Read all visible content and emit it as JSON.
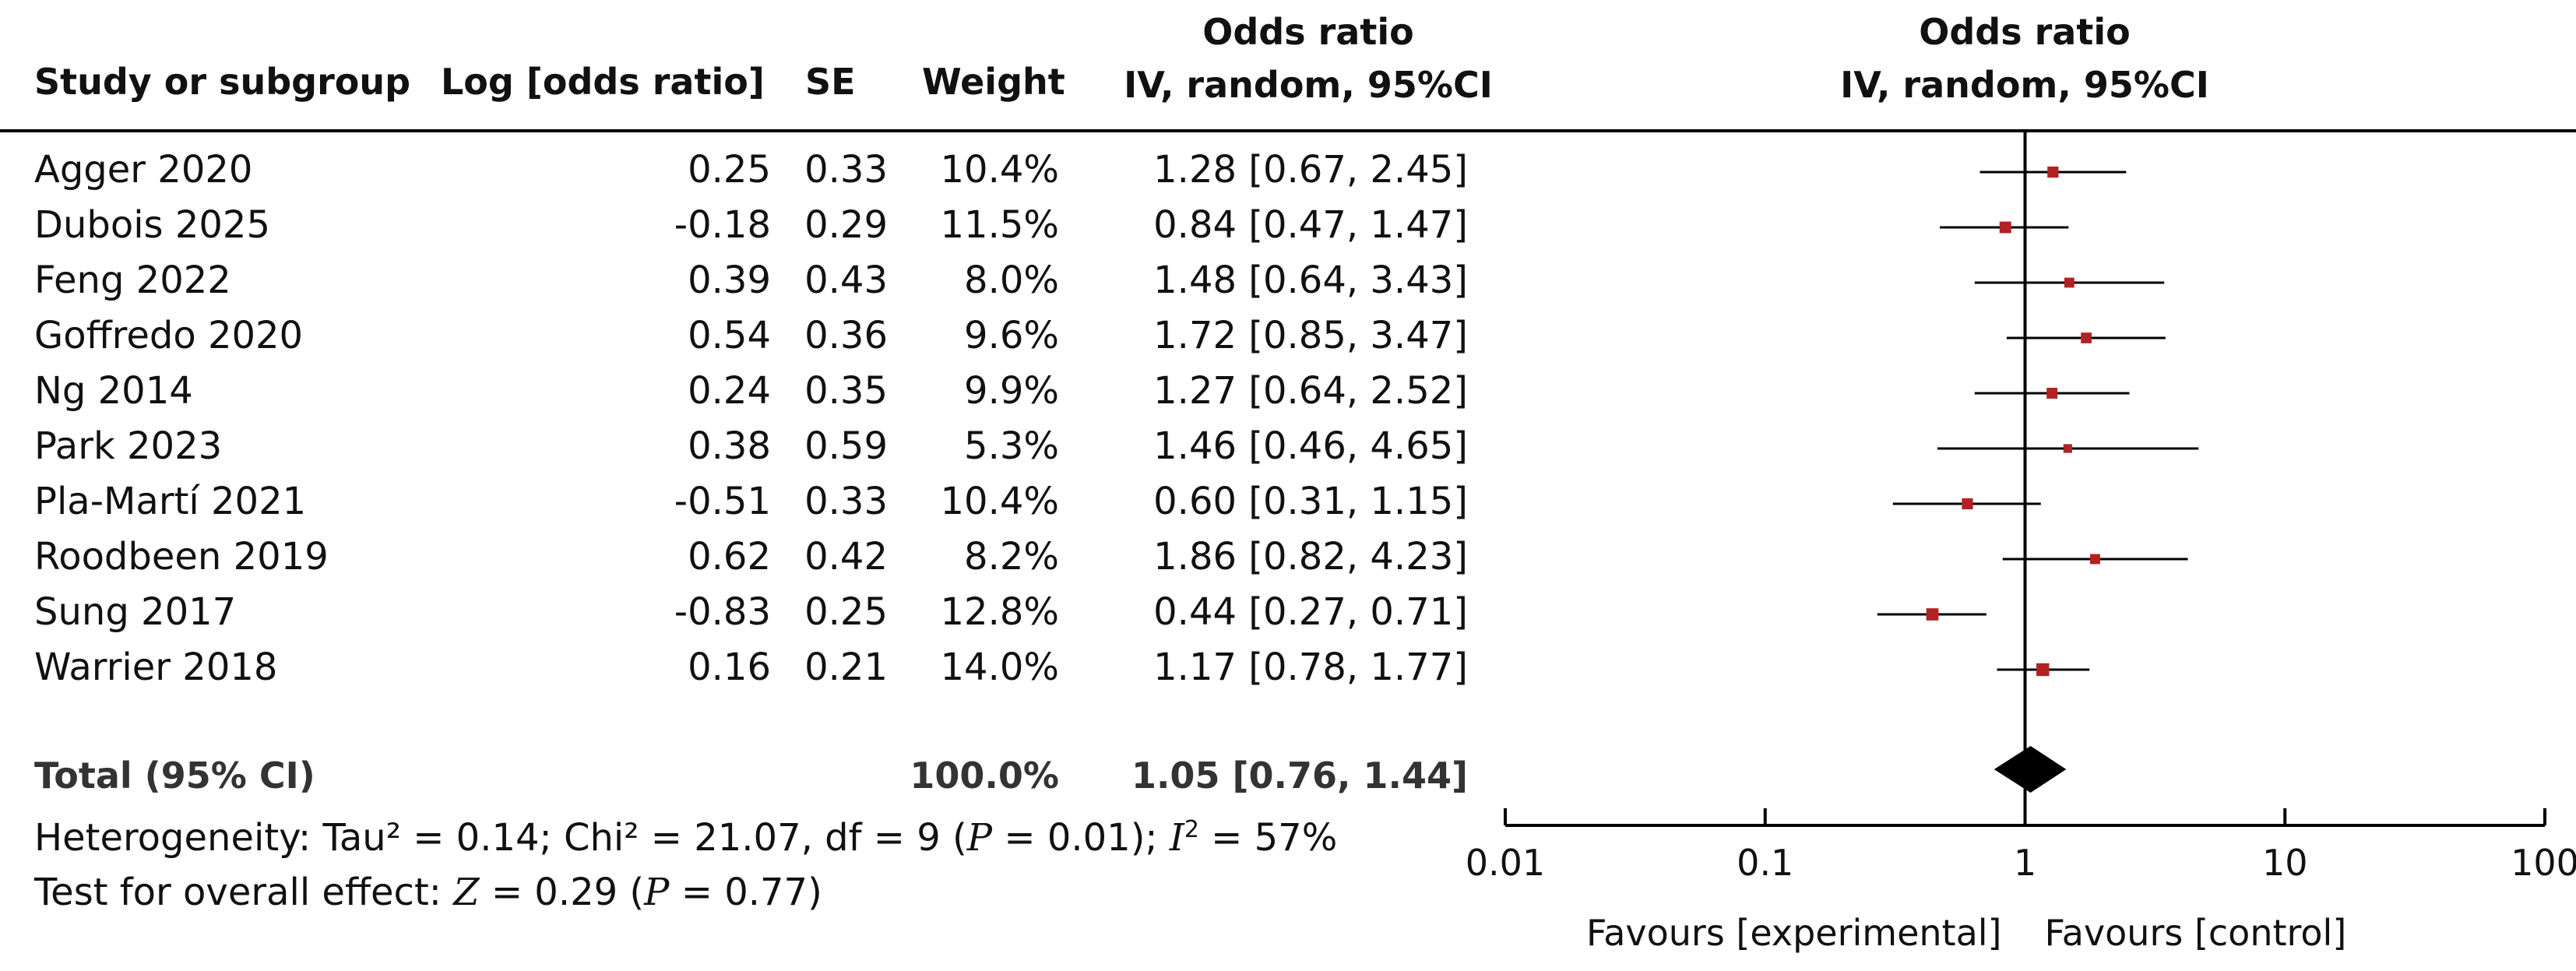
{
  "headers": {
    "study": "Study or subgroup",
    "log_or": "Log [odds ratio]",
    "se": "SE",
    "weight": "Weight",
    "or_line1": "Odds ratio",
    "or_line2": "IV, random, 95%CI",
    "plot_line1": "Odds ratio",
    "plot_line2": "IV, random, 95%CI"
  },
  "rows": [
    {
      "study": "Agger 2020",
      "log_or": "0.25",
      "se": "0.33",
      "weight": "10.4%",
      "ci": "1.28 [0.67, 2.45]"
    },
    {
      "study": "Dubois 2025",
      "log_or": "-0.18",
      "se": "0.29",
      "weight": "11.5%",
      "ci": "0.84 [0.47, 1.47]"
    },
    {
      "study": "Feng 2022",
      "log_or": "0.39",
      "se": "0.43",
      "weight": "8.0%",
      "ci": "1.48 [0.64, 3.43]"
    },
    {
      "study": "Goffredo 2020",
      "log_or": "0.54",
      "se": "0.36",
      "weight": "9.6%",
      "ci": "1.72 [0.85, 3.47]"
    },
    {
      "study": "Ng 2014",
      "log_or": "0.24",
      "se": "0.35",
      "weight": "9.9%",
      "ci": "1.27 [0.64, 2.52]"
    },
    {
      "study": "Park 2023",
      "log_or": "0.38",
      "se": "0.59",
      "weight": "5.3%",
      "ci": "1.46 [0.46, 4.65]"
    },
    {
      "study": "Pla-Martí 2021",
      "log_or": "-0.51",
      "se": "0.33",
      "weight": "10.4%",
      "ci": "0.60 [0.31, 1.15]"
    },
    {
      "study": "Roodbeen 2019",
      "log_or": "0.62",
      "se": "0.42",
      "weight": "8.2%",
      "ci": "1.86 [0.82, 4.23]"
    },
    {
      "study": "Sung 2017",
      "log_or": "-0.83",
      "se": "0.25",
      "weight": "12.8%",
      "ci": "0.44 [0.27, 0.71]"
    },
    {
      "study": "Warrier 2018",
      "log_or": "0.16",
      "se": "0.21",
      "weight": "14.0%",
      "ci": "1.17 [0.78, 1.77]"
    }
  ],
  "total": {
    "label": "Total (95% CI)",
    "weight": "100.0%",
    "ci": "1.05 [0.76, 1.44]"
  },
  "heterogeneity": {
    "prefix": "Heterogeneity: Tau² = 0.14; Chi² = 21.07, df = 9 (",
    "p_sym": "P",
    "p_val": " = 0.01); ",
    "i_sym": "I",
    "i_sup": "2",
    "i_val": " = 57%"
  },
  "overall": {
    "prefix": "Test for overall effect: ",
    "z_sym": "Z",
    "z_val": " = 0.29 (",
    "p_sym": "P",
    "p_val": " = 0.77)"
  },
  "chart_data": {
    "type": "forest",
    "scale": "log",
    "xlim": [
      0.01,
      100
    ],
    "ticks": [
      0.01,
      0.1,
      1,
      10,
      100
    ],
    "tick_labels": [
      "0.01",
      "0.1",
      "1",
      "10",
      "100"
    ],
    "favours_left": "Favours [experimental]",
    "favours_right": "Favours [control]",
    "marker_color": "#b22222",
    "studies": [
      {
        "name": "Agger 2020",
        "or": 1.28,
        "lo": 0.67,
        "hi": 2.45,
        "weight": 10.4
      },
      {
        "name": "Dubois 2025",
        "or": 0.84,
        "lo": 0.47,
        "hi": 1.47,
        "weight": 11.5
      },
      {
        "name": "Feng 2022",
        "or": 1.48,
        "lo": 0.64,
        "hi": 3.43,
        "weight": 8.0
      },
      {
        "name": "Goffredo 2020",
        "or": 1.72,
        "lo": 0.85,
        "hi": 3.47,
        "weight": 9.6
      },
      {
        "name": "Ng 2014",
        "or": 1.27,
        "lo": 0.64,
        "hi": 2.52,
        "weight": 9.9
      },
      {
        "name": "Park 2023",
        "or": 1.46,
        "lo": 0.46,
        "hi": 4.65,
        "weight": 5.3
      },
      {
        "name": "Pla-Martí 2021",
        "or": 0.6,
        "lo": 0.31,
        "hi": 1.15,
        "weight": 10.4
      },
      {
        "name": "Roodbeen 2019",
        "or": 1.86,
        "lo": 0.82,
        "hi": 4.23,
        "weight": 8.2
      },
      {
        "name": "Sung 2017",
        "or": 0.44,
        "lo": 0.27,
        "hi": 0.71,
        "weight": 12.8
      },
      {
        "name": "Warrier 2018",
        "or": 1.17,
        "lo": 0.78,
        "hi": 1.77,
        "weight": 14.0
      }
    ],
    "pooled": {
      "or": 1.05,
      "lo": 0.76,
      "hi": 1.44
    }
  }
}
